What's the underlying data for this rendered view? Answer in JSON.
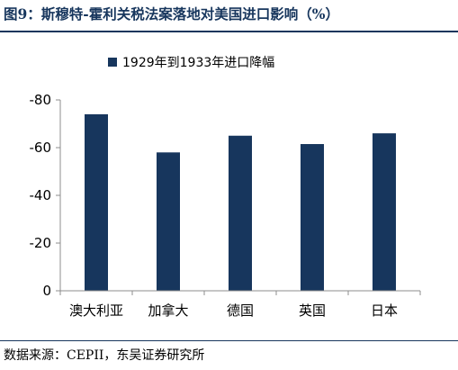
{
  "figure": {
    "title": "图9：斯穆特-霍利关税法案落地对美国进口影响（%）",
    "source": "数据来源：CEPII，东吴证券研究所"
  },
  "colors": {
    "bar": "#17365d",
    "title": "#17365d",
    "axis": "#8c8c8c"
  },
  "chart_data": {
    "type": "bar",
    "title": "",
    "xlabel": "",
    "ylabel": "",
    "categories": [
      "澳大利亚",
      "加拿大",
      "德国",
      "英国",
      "日本"
    ],
    "series": [
      {
        "name": "1929年到1933年进口降幅",
        "values": [
          -74,
          -58,
          -65,
          -61.5,
          -66
        ]
      }
    ],
    "ylim": [
      0,
      -80
    ],
    "y_axis_inverted": true,
    "yticks": [
      0,
      -20,
      -40,
      -60,
      -80
    ],
    "grid": false,
    "legend": "top-center"
  }
}
